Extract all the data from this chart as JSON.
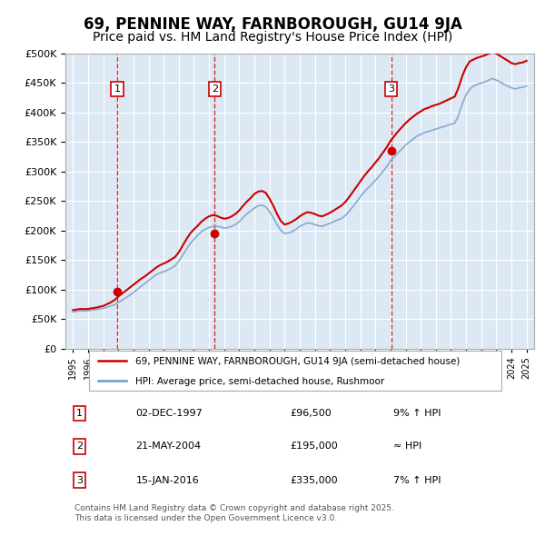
{
  "title": "69, PENNINE WAY, FARNBOROUGH, GU14 9JA",
  "subtitle": "Price paid vs. HM Land Registry's House Price Index (HPI)",
  "title_fontsize": 12,
  "subtitle_fontsize": 10,
  "background_color": "#ffffff",
  "plot_bg_color": "#dce9f5",
  "grid_color": "#ffffff",
  "ylim": [
    0,
    500000
  ],
  "yticks": [
    0,
    50000,
    100000,
    150000,
    200000,
    250000,
    300000,
    350000,
    400000,
    450000,
    500000
  ],
  "xlim_start": 1994.5,
  "xlim_end": 2025.5,
  "transactions": [
    {
      "num": 1,
      "date": "02-DEC-1997",
      "year": 1997.92,
      "price": 96500,
      "label": "9% ↑ HPI"
    },
    {
      "num": 2,
      "date": "21-MAY-2004",
      "year": 2004.38,
      "price": 195000,
      "label": "≈ HPI"
    },
    {
      "num": 3,
      "date": "15-JAN-2016",
      "year": 2016.04,
      "price": 335000,
      "label": "7% ↑ HPI"
    }
  ],
  "legend_line1": "69, PENNINE WAY, FARNBOROUGH, GU14 9JA (semi-detached house)",
  "legend_line2": "HPI: Average price, semi-detached house, Rushmoor",
  "legend_color1": "#cc0000",
  "legend_color2": "#6699cc",
  "table_rows": [
    {
      "num": 1,
      "date": "02-DEC-1997",
      "price": "£96,500",
      "hpi": "9% ↑ HPI"
    },
    {
      "num": 2,
      "date": "21-MAY-2004",
      "price": "£195,000",
      "hpi": "≈ HPI"
    },
    {
      "num": 3,
      "date": "15-JAN-2016",
      "price": "£335,000",
      "hpi": "7% ↑ HPI"
    }
  ],
  "copyright_text": "Contains HM Land Registry data © Crown copyright and database right 2025.\nThis data is licensed under the Open Government Licence v3.0.",
  "red_line_color": "#cc0000",
  "blue_line_color": "#88aacc",
  "hpi_years": [
    1995,
    1995.25,
    1995.5,
    1995.75,
    1996,
    1996.25,
    1996.5,
    1996.75,
    1997,
    1997.25,
    1997.5,
    1997.75,
    1998,
    1998.25,
    1998.5,
    1998.75,
    1999,
    1999.25,
    1999.5,
    1999.75,
    2000,
    2000.25,
    2000.5,
    2000.75,
    2001,
    2001.25,
    2001.5,
    2001.75,
    2002,
    2002.25,
    2002.5,
    2002.75,
    2003,
    2003.25,
    2003.5,
    2003.75,
    2004,
    2004.25,
    2004.5,
    2004.75,
    2005,
    2005.25,
    2005.5,
    2005.75,
    2006,
    2006.25,
    2006.5,
    2006.75,
    2007,
    2007.25,
    2007.5,
    2007.75,
    2008,
    2008.25,
    2008.5,
    2008.75,
    2009,
    2009.25,
    2009.5,
    2009.75,
    2010,
    2010.25,
    2010.5,
    2010.75,
    2011,
    2011.25,
    2011.5,
    2011.75,
    2012,
    2012.25,
    2012.5,
    2012.75,
    2013,
    2013.25,
    2013.5,
    2013.75,
    2014,
    2014.25,
    2014.5,
    2014.75,
    2015,
    2015.25,
    2015.5,
    2015.75,
    2016,
    2016.25,
    2016.5,
    2016.75,
    2017,
    2017.25,
    2017.5,
    2017.75,
    2018,
    2018.25,
    2018.5,
    2018.75,
    2019,
    2019.25,
    2019.5,
    2019.75,
    2020,
    2020.25,
    2020.5,
    2020.75,
    2021,
    2021.25,
    2021.5,
    2021.75,
    2022,
    2022.25,
    2022.5,
    2022.75,
    2023,
    2023.25,
    2023.5,
    2023.75,
    2024,
    2024.25,
    2024.5,
    2024.75,
    2025
  ],
  "hpi_values": [
    62000,
    63000,
    64000,
    63500,
    64000,
    65000,
    66000,
    67000,
    68000,
    70000,
    72000,
    74000,
    78000,
    82000,
    86000,
    90000,
    95000,
    100000,
    105000,
    110000,
    115000,
    120000,
    125000,
    128000,
    130000,
    133000,
    136000,
    140000,
    148000,
    158000,
    168000,
    178000,
    185000,
    192000,
    198000,
    202000,
    205000,
    207000,
    207000,
    206000,
    204000,
    205000,
    207000,
    210000,
    215000,
    222000,
    228000,
    233000,
    238000,
    242000,
    243000,
    240000,
    232000,
    222000,
    210000,
    200000,
    195000,
    196000,
    198000,
    202000,
    207000,
    210000,
    213000,
    212000,
    210000,
    208000,
    207000,
    210000,
    212000,
    215000,
    218000,
    220000,
    225000,
    232000,
    240000,
    248000,
    257000,
    265000,
    272000,
    278000,
    285000,
    292000,
    300000,
    308000,
    318000,
    325000,
    332000,
    338000,
    345000,
    350000,
    355000,
    360000,
    363000,
    366000,
    368000,
    370000,
    372000,
    374000,
    376000,
    378000,
    380000,
    382000,
    395000,
    415000,
    430000,
    440000,
    445000,
    448000,
    450000,
    452000,
    455000,
    458000,
    455000,
    452000,
    448000,
    445000,
    442000,
    440000,
    442000,
    443000,
    445000
  ],
  "red_years": [
    1995,
    1995.25,
    1995.5,
    1995.75,
    1996,
    1996.25,
    1996.5,
    1996.75,
    1997,
    1997.25,
    1997.5,
    1997.75,
    1998,
    1998.25,
    1998.5,
    1998.75,
    1999,
    1999.25,
    1999.5,
    1999.75,
    2000,
    2000.25,
    2000.5,
    2000.75,
    2001,
    2001.25,
    2001.5,
    2001.75,
    2002,
    2002.25,
    2002.5,
    2002.75,
    2003,
    2003.25,
    2003.5,
    2003.75,
    2004,
    2004.25,
    2004.5,
    2004.75,
    2005,
    2005.25,
    2005.5,
    2005.75,
    2006,
    2006.25,
    2006.5,
    2006.75,
    2007,
    2007.25,
    2007.5,
    2007.75,
    2008,
    2008.25,
    2008.5,
    2008.75,
    2009,
    2009.25,
    2009.5,
    2009.75,
    2010,
    2010.25,
    2010.5,
    2010.75,
    2011,
    2011.25,
    2011.5,
    2011.75,
    2012,
    2012.25,
    2012.5,
    2012.75,
    2013,
    2013.25,
    2013.5,
    2013.75,
    2014,
    2014.25,
    2014.5,
    2014.75,
    2015,
    2015.25,
    2015.5,
    2015.75,
    2016,
    2016.25,
    2016.5,
    2016.75,
    2017,
    2017.25,
    2017.5,
    2017.75,
    2018,
    2018.25,
    2018.5,
    2018.75,
    2019,
    2019.25,
    2019.5,
    2019.75,
    2020,
    2020.25,
    2020.5,
    2020.75,
    2021,
    2021.25,
    2021.5,
    2021.75,
    2022,
    2022.25,
    2022.5,
    2022.75,
    2023,
    2023.25,
    2023.5,
    2023.75,
    2024,
    2024.25,
    2024.5,
    2024.75,
    2025
  ],
  "red_values": [
    65000,
    66000,
    67000,
    66500,
    67000,
    68000,
    69000,
    70500,
    72000,
    75000,
    78000,
    82000,
    88000,
    93000,
    98000,
    103000,
    108000,
    113000,
    118000,
    122000,
    127000,
    132000,
    137000,
    141000,
    144000,
    147000,
    151000,
    155000,
    163000,
    174000,
    185000,
    195000,
    202000,
    208000,
    215000,
    220000,
    224000,
    226000,
    225000,
    222000,
    220000,
    221000,
    224000,
    228000,
    234000,
    242000,
    249000,
    255000,
    262000,
    266000,
    267000,
    264000,
    254000,
    242000,
    228000,
    216000,
    210000,
    212000,
    215000,
    219000,
    224000,
    228000,
    231000,
    230000,
    228000,
    225000,
    224000,
    227000,
    230000,
    234000,
    238000,
    242000,
    248000,
    256000,
    265000,
    274000,
    283000,
    292000,
    300000,
    307000,
    315000,
    323000,
    332000,
    341000,
    352000,
    360000,
    368000,
    375000,
    382000,
    388000,
    393000,
    398000,
    402000,
    406000,
    408000,
    411000,
    413000,
    415000,
    418000,
    421000,
    424000,
    427000,
    442000,
    462000,
    477000,
    487000,
    490000,
    493000,
    495000,
    497000,
    500000,
    503000,
    500000,
    496000,
    492000,
    488000,
    484000,
    482000,
    484000,
    485000,
    488000
  ]
}
